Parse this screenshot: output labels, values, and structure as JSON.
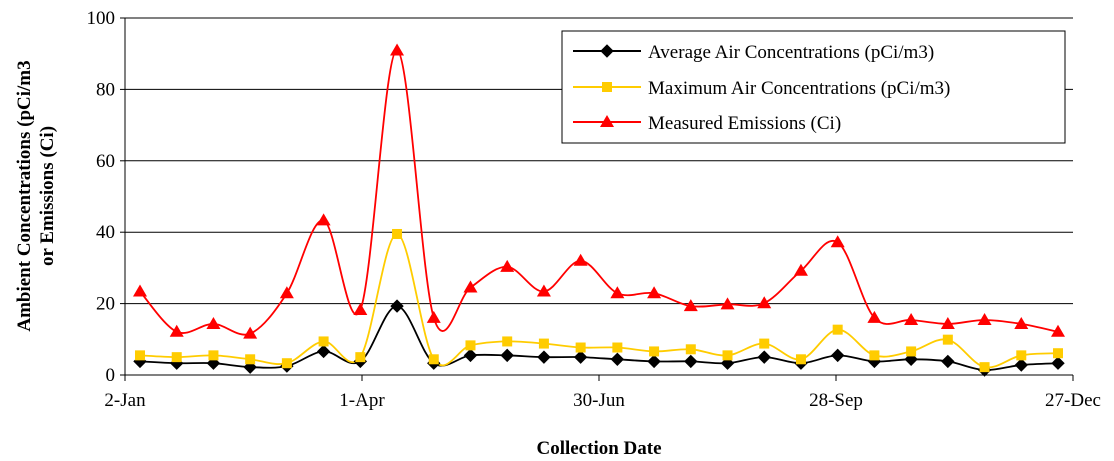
{
  "chart_data": {
    "type": "line",
    "xlabel": "Collection Date",
    "ylabel": [
      "Ambient Concentrations (pCi/m3",
      "or Emissions (Ci)"
    ],
    "ylim": [
      0,
      100
    ],
    "yticks": [
      "0",
      "20",
      "40",
      "60",
      "80",
      "100"
    ],
    "xlim": [
      "2-Jan",
      "27-Dec"
    ],
    "xticks": [
      "2-Jan",
      "1-Apr",
      "30-Jun",
      "28-Sep",
      "27-Dec"
    ],
    "grid": "horizontal",
    "legend_position": "top-right",
    "x": [
      "2-Jan",
      "16-Jan",
      "30-Jan",
      "13-Feb",
      "27-Feb",
      "13-Mar",
      "27-Mar",
      "10-Apr",
      "24-Apr",
      "8-May",
      "22-May",
      "5-Jun",
      "19-Jun",
      "3-Jul",
      "17-Jul",
      "31-Jul",
      "14-Aug",
      "28-Aug",
      "11-Sep",
      "25-Sep",
      "9-Oct",
      "23-Oct",
      "6-Nov",
      "20-Nov",
      "4-Dec",
      "18-Dec"
    ],
    "series": [
      {
        "name": "Average Air Concentrations (pCi/m3)",
        "color": "#000000",
        "marker": "diamond",
        "values": [
          3.8,
          3.3,
          3.3,
          2.2,
          2.5,
          6.6,
          3.8,
          19.3,
          3.3,
          5.5,
          5.5,
          5.0,
          5.0,
          4.4,
          3.8,
          3.8,
          3.3,
          5.0,
          3.3,
          5.5,
          3.8,
          4.4,
          3.8,
          1.4,
          2.8,
          3.3
        ]
      },
      {
        "name": "Maximum Air Concentrations (pCi/m3)",
        "color": "#ffcc00",
        "marker": "square",
        "values": [
          5.5,
          5.0,
          5.5,
          4.4,
          3.3,
          9.4,
          5.0,
          39.5,
          4.4,
          8.3,
          9.4,
          8.8,
          7.7,
          7.7,
          6.6,
          7.2,
          5.5,
          8.8,
          4.4,
          12.7,
          5.5,
          6.6,
          9.9,
          2.2,
          5.5,
          6.1
        ]
      },
      {
        "name": "Measured Emissions (Ci)",
        "color": "#ff0000",
        "marker": "triangle",
        "values": [
          23.4,
          12.1,
          14.3,
          11.6,
          22.9,
          43.3,
          18.2,
          90.9,
          16.0,
          24.5,
          30.3,
          23.4,
          32.0,
          22.9,
          22.9,
          19.3,
          19.8,
          20.1,
          29.2,
          37.2,
          16.0,
          15.4,
          14.3,
          15.4,
          14.3,
          12.1
        ]
      }
    ]
  }
}
